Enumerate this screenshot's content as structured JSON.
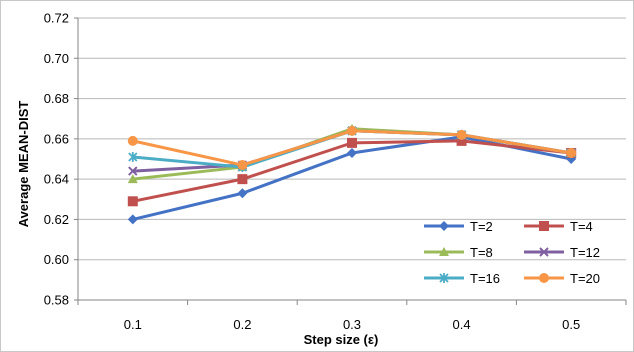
{
  "chart_data": {
    "type": "line",
    "title": "",
    "xlabel": "Step size (ε)",
    "ylabel": "Average MEAN-DIST",
    "categories": [
      "0.1",
      "0.2",
      "0.3",
      "0.4",
      "0.5"
    ],
    "ylim": [
      0.58,
      0.72
    ],
    "yticks": [
      "0.58",
      "0.60",
      "0.62",
      "0.64",
      "0.66",
      "0.68",
      "0.70",
      "0.72"
    ],
    "grid": "horizontal",
    "legend_position": "bottom-right",
    "series": [
      {
        "name": "T=2",
        "color": "#4472C4",
        "marker": "diamond",
        "values": [
          0.62,
          0.633,
          0.653,
          0.661,
          0.65
        ]
      },
      {
        "name": "T=4",
        "color": "#C0504D",
        "marker": "square",
        "values": [
          0.629,
          0.64,
          0.658,
          0.659,
          0.653
        ]
      },
      {
        "name": "T=8",
        "color": "#9BBB59",
        "marker": "triangle",
        "values": [
          0.64,
          0.646,
          0.665,
          0.662,
          0.653
        ]
      },
      {
        "name": "T=12",
        "color": "#7F5FA0",
        "marker": "x",
        "values": [
          0.644,
          0.647,
          0.664,
          0.662,
          0.653
        ]
      },
      {
        "name": "T=16",
        "color": "#4BACC6",
        "marker": "star",
        "values": [
          0.651,
          0.646,
          0.664,
          0.662,
          0.653
        ]
      },
      {
        "name": "T=20",
        "color": "#F79646",
        "marker": "circle",
        "values": [
          0.659,
          0.647,
          0.664,
          0.662,
          0.653
        ]
      }
    ]
  }
}
